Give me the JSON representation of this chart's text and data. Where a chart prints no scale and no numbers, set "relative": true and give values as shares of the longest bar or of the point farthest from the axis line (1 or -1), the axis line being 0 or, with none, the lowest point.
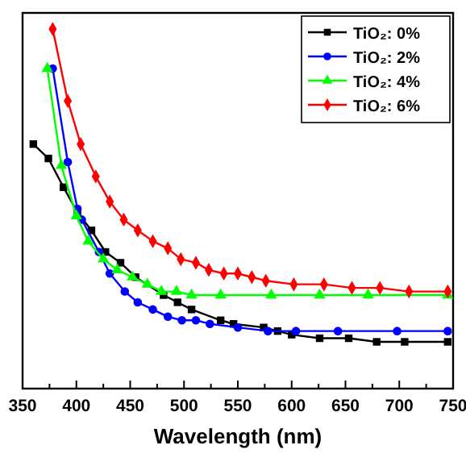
{
  "chart_data": {
    "type": "line",
    "xlabel": "Wavelength (nm)",
    "relative": true,
    "xlim": [
      350,
      750
    ],
    "xticks": [
      350,
      {
        "value": 375,
        "label": null
      },
      400,
      {
        "value": 425,
        "label": null
      },
      450,
      {
        "value": 475,
        "label": null
      },
      500,
      {
        "value": 525,
        "label": null
      },
      550,
      {
        "value": 575,
        "label": null
      },
      600,
      {
        "value": 625,
        "label": null
      },
      650,
      {
        "value": 675,
        "label": null
      },
      700,
      {
        "value": 725,
        "label": null
      },
      750
    ],
    "legend": "top right",
    "grid": false,
    "line_style": "solid",
    "series": [
      {
        "name": "TiO₂: 0%",
        "color": "#000000",
        "marker": "square",
        "x": [
          360,
          374,
          388,
          401,
          414,
          427,
          441,
          455,
          481,
          494,
          507,
          534,
          546,
          574,
          587,
          600,
          626,
          653,
          679,
          705,
          745
        ],
        "values": [
          0.68,
          0.64,
          0.56,
          0.49,
          0.44,
          0.38,
          0.35,
          0.31,
          0.26,
          0.24,
          0.22,
          0.19,
          0.18,
          0.17,
          0.16,
          0.15,
          0.14,
          0.14,
          0.13,
          0.13,
          0.13
        ]
      },
      {
        "name": "TiO₂: 2%",
        "color": "#0000ff",
        "marker": "circle",
        "x": [
          378,
          392,
          401,
          405,
          421,
          431,
          445,
          457,
          471,
          485,
          498,
          511,
          524,
          550,
          578,
          604,
          643,
          698,
          745
        ],
        "values": [
          0.89,
          0.63,
          0.5,
          0.47,
          0.38,
          0.32,
          0.27,
          0.24,
          0.22,
          0.2,
          0.19,
          0.19,
          0.18,
          0.17,
          0.16,
          0.16,
          0.16,
          0.16,
          0.16
        ]
      },
      {
        "name": "TiO₂: 4%",
        "color": "#00ff00",
        "marker": "triangle",
        "x": [
          373,
          386,
          400,
          411,
          425,
          438,
          452,
          466,
          479,
          493,
          507,
          534,
          581,
          626,
          671,
          745
        ],
        "values": [
          0.89,
          0.62,
          0.48,
          0.41,
          0.36,
          0.33,
          0.31,
          0.29,
          0.27,
          0.27,
          0.26,
          0.26,
          0.26,
          0.26,
          0.26,
          0.26
        ]
      },
      {
        "name": "TiO₂: 6%",
        "color": "#ff0000",
        "marker": "diamond",
        "x": [
          378,
          392,
          404,
          418,
          431,
          444,
          457,
          471,
          485,
          497,
          511,
          523,
          537,
          550,
          563,
          576,
          602,
          630,
          656,
          682,
          709,
          745
        ],
        "values": [
          1.0,
          0.8,
          0.68,
          0.59,
          0.52,
          0.47,
          0.44,
          0.41,
          0.39,
          0.36,
          0.35,
          0.33,
          0.32,
          0.32,
          0.31,
          0.3,
          0.29,
          0.29,
          0.28,
          0.28,
          0.27,
          0.27
        ]
      }
    ]
  }
}
